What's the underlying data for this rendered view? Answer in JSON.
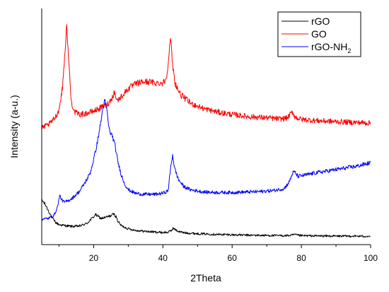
{
  "chart_data": {
    "type": "line",
    "title": "",
    "xlabel": "2Theta",
    "ylabel": "Intensity (a-u.)",
    "xlim": [
      5,
      100
    ],
    "ylim": [
      0,
      1
    ],
    "x_ticks": [
      20,
      40,
      60,
      80,
      100
    ],
    "x_tick_labels": [
      "20",
      "40",
      "60",
      "80",
      "100"
    ],
    "y_ticks_labeled": false,
    "grid": false,
    "legend_position": "top-right",
    "series": [
      {
        "name": "rGO",
        "legend_base": "rGO",
        "legend_sub": "",
        "color": "#000000",
        "points": [
          [
            5,
            0.18
          ],
          [
            6,
            0.16
          ],
          [
            7,
            0.13
          ],
          [
            8,
            0.1
          ],
          [
            9,
            0.08
          ],
          [
            10,
            0.07
          ],
          [
            12,
            0.065
          ],
          [
            14,
            0.062
          ],
          [
            16,
            0.064
          ],
          [
            18,
            0.075
          ],
          [
            19,
            0.09
          ],
          [
            20,
            0.105
          ],
          [
            20.5,
            0.115
          ],
          [
            21,
            0.11
          ],
          [
            22,
            0.098
          ],
          [
            23,
            0.1
          ],
          [
            24,
            0.105
          ],
          [
            25,
            0.11
          ],
          [
            25.8,
            0.118
          ],
          [
            26.5,
            0.105
          ],
          [
            27,
            0.085
          ],
          [
            28,
            0.065
          ],
          [
            30,
            0.052
          ],
          [
            32,
            0.045
          ],
          [
            35,
            0.04
          ],
          [
            38,
            0.037
          ],
          [
            40,
            0.035
          ],
          [
            41.5,
            0.036
          ],
          [
            42.5,
            0.045
          ],
          [
            43,
            0.055
          ],
          [
            43.5,
            0.048
          ],
          [
            44.5,
            0.04
          ],
          [
            46,
            0.034
          ],
          [
            50,
            0.03
          ],
          [
            55,
            0.027
          ],
          [
            60,
            0.025
          ],
          [
            65,
            0.023
          ],
          [
            70,
            0.022
          ],
          [
            75,
            0.021
          ],
          [
            77,
            0.022
          ],
          [
            78,
            0.026
          ],
          [
            78.5,
            0.024
          ],
          [
            80,
            0.021
          ],
          [
            85,
            0.02
          ],
          [
            90,
            0.019
          ],
          [
            95,
            0.019
          ],
          [
            100,
            0.018
          ]
        ]
      },
      {
        "name": "GO",
        "legend_base": "GO",
        "legend_sub": "",
        "color": "#ff0000",
        "points": [
          [
            5,
            0.5
          ],
          [
            7,
            0.515
          ],
          [
            8,
            0.53
          ],
          [
            9,
            0.55
          ],
          [
            10,
            0.58
          ],
          [
            11,
            0.68
          ],
          [
            11.8,
            0.86
          ],
          [
            12.2,
            0.95
          ],
          [
            12.8,
            0.8
          ],
          [
            13.5,
            0.62
          ],
          [
            14.5,
            0.57
          ],
          [
            16,
            0.56
          ],
          [
            18,
            0.565
          ],
          [
            20,
            0.575
          ],
          [
            22,
            0.59
          ],
          [
            24,
            0.605
          ],
          [
            25.2,
            0.63
          ],
          [
            26,
            0.66
          ],
          [
            26.8,
            0.62
          ],
          [
            28,
            0.64
          ],
          [
            30,
            0.675
          ],
          [
            32,
            0.695
          ],
          [
            34,
            0.705
          ],
          [
            36,
            0.705
          ],
          [
            38,
            0.7
          ],
          [
            40,
            0.7
          ],
          [
            41,
            0.72
          ],
          [
            41.7,
            0.82
          ],
          [
            42.2,
            0.9
          ],
          [
            42.8,
            0.78
          ],
          [
            43.5,
            0.7
          ],
          [
            45,
            0.65
          ],
          [
            48,
            0.61
          ],
          [
            52,
            0.585
          ],
          [
            56,
            0.57
          ],
          [
            60,
            0.56
          ],
          [
            65,
            0.55
          ],
          [
            70,
            0.545
          ],
          [
            74,
            0.54
          ],
          [
            76,
            0.545
          ],
          [
            77,
            0.565
          ],
          [
            77.5,
            0.57
          ],
          [
            78.2,
            0.548
          ],
          [
            80,
            0.538
          ],
          [
            85,
            0.532
          ],
          [
            90,
            0.528
          ],
          [
            95,
            0.525
          ],
          [
            100,
            0.522
          ]
        ]
      },
      {
        "name": "rGO-NH2",
        "legend_base": "rGO-NH",
        "legend_sub": "2",
        "color": "#0000ff",
        "points": [
          [
            5,
            0.095
          ],
          [
            7,
            0.098
          ],
          [
            8.5,
            0.11
          ],
          [
            9.5,
            0.145
          ],
          [
            10.2,
            0.2
          ],
          [
            10.8,
            0.18
          ],
          [
            11.5,
            0.17
          ],
          [
            12.5,
            0.175
          ],
          [
            14,
            0.19
          ],
          [
            16,
            0.22
          ],
          [
            18,
            0.27
          ],
          [
            19,
            0.3
          ],
          [
            20,
            0.36
          ],
          [
            21,
            0.43
          ],
          [
            22,
            0.52
          ],
          [
            22.8,
            0.6
          ],
          [
            23.2,
            0.62
          ],
          [
            23.8,
            0.58
          ],
          [
            24.5,
            0.49
          ],
          [
            25.5,
            0.46
          ],
          [
            26.2,
            0.42
          ],
          [
            27,
            0.35
          ],
          [
            28,
            0.29
          ],
          [
            29,
            0.25
          ],
          [
            30,
            0.225
          ],
          [
            32,
            0.21
          ],
          [
            34,
            0.205
          ],
          [
            36,
            0.205
          ],
          [
            38,
            0.205
          ],
          [
            40,
            0.21
          ],
          [
            41.5,
            0.22
          ],
          [
            42.3,
            0.33
          ],
          [
            42.8,
            0.38
          ],
          [
            43.4,
            0.32
          ],
          [
            44.5,
            0.27
          ],
          [
            46,
            0.24
          ],
          [
            48,
            0.225
          ],
          [
            52,
            0.215
          ],
          [
            56,
            0.213
          ],
          [
            60,
            0.213
          ],
          [
            64,
            0.215
          ],
          [
            68,
            0.217
          ],
          [
            72,
            0.222
          ],
          [
            75,
            0.23
          ],
          [
            76.5,
            0.26
          ],
          [
            77.5,
            0.3
          ],
          [
            78,
            0.305
          ],
          [
            79,
            0.285
          ],
          [
            81,
            0.29
          ],
          [
            84,
            0.3
          ],
          [
            88,
            0.31
          ],
          [
            92,
            0.32
          ],
          [
            96,
            0.33
          ],
          [
            100,
            0.345
          ]
        ]
      }
    ]
  }
}
